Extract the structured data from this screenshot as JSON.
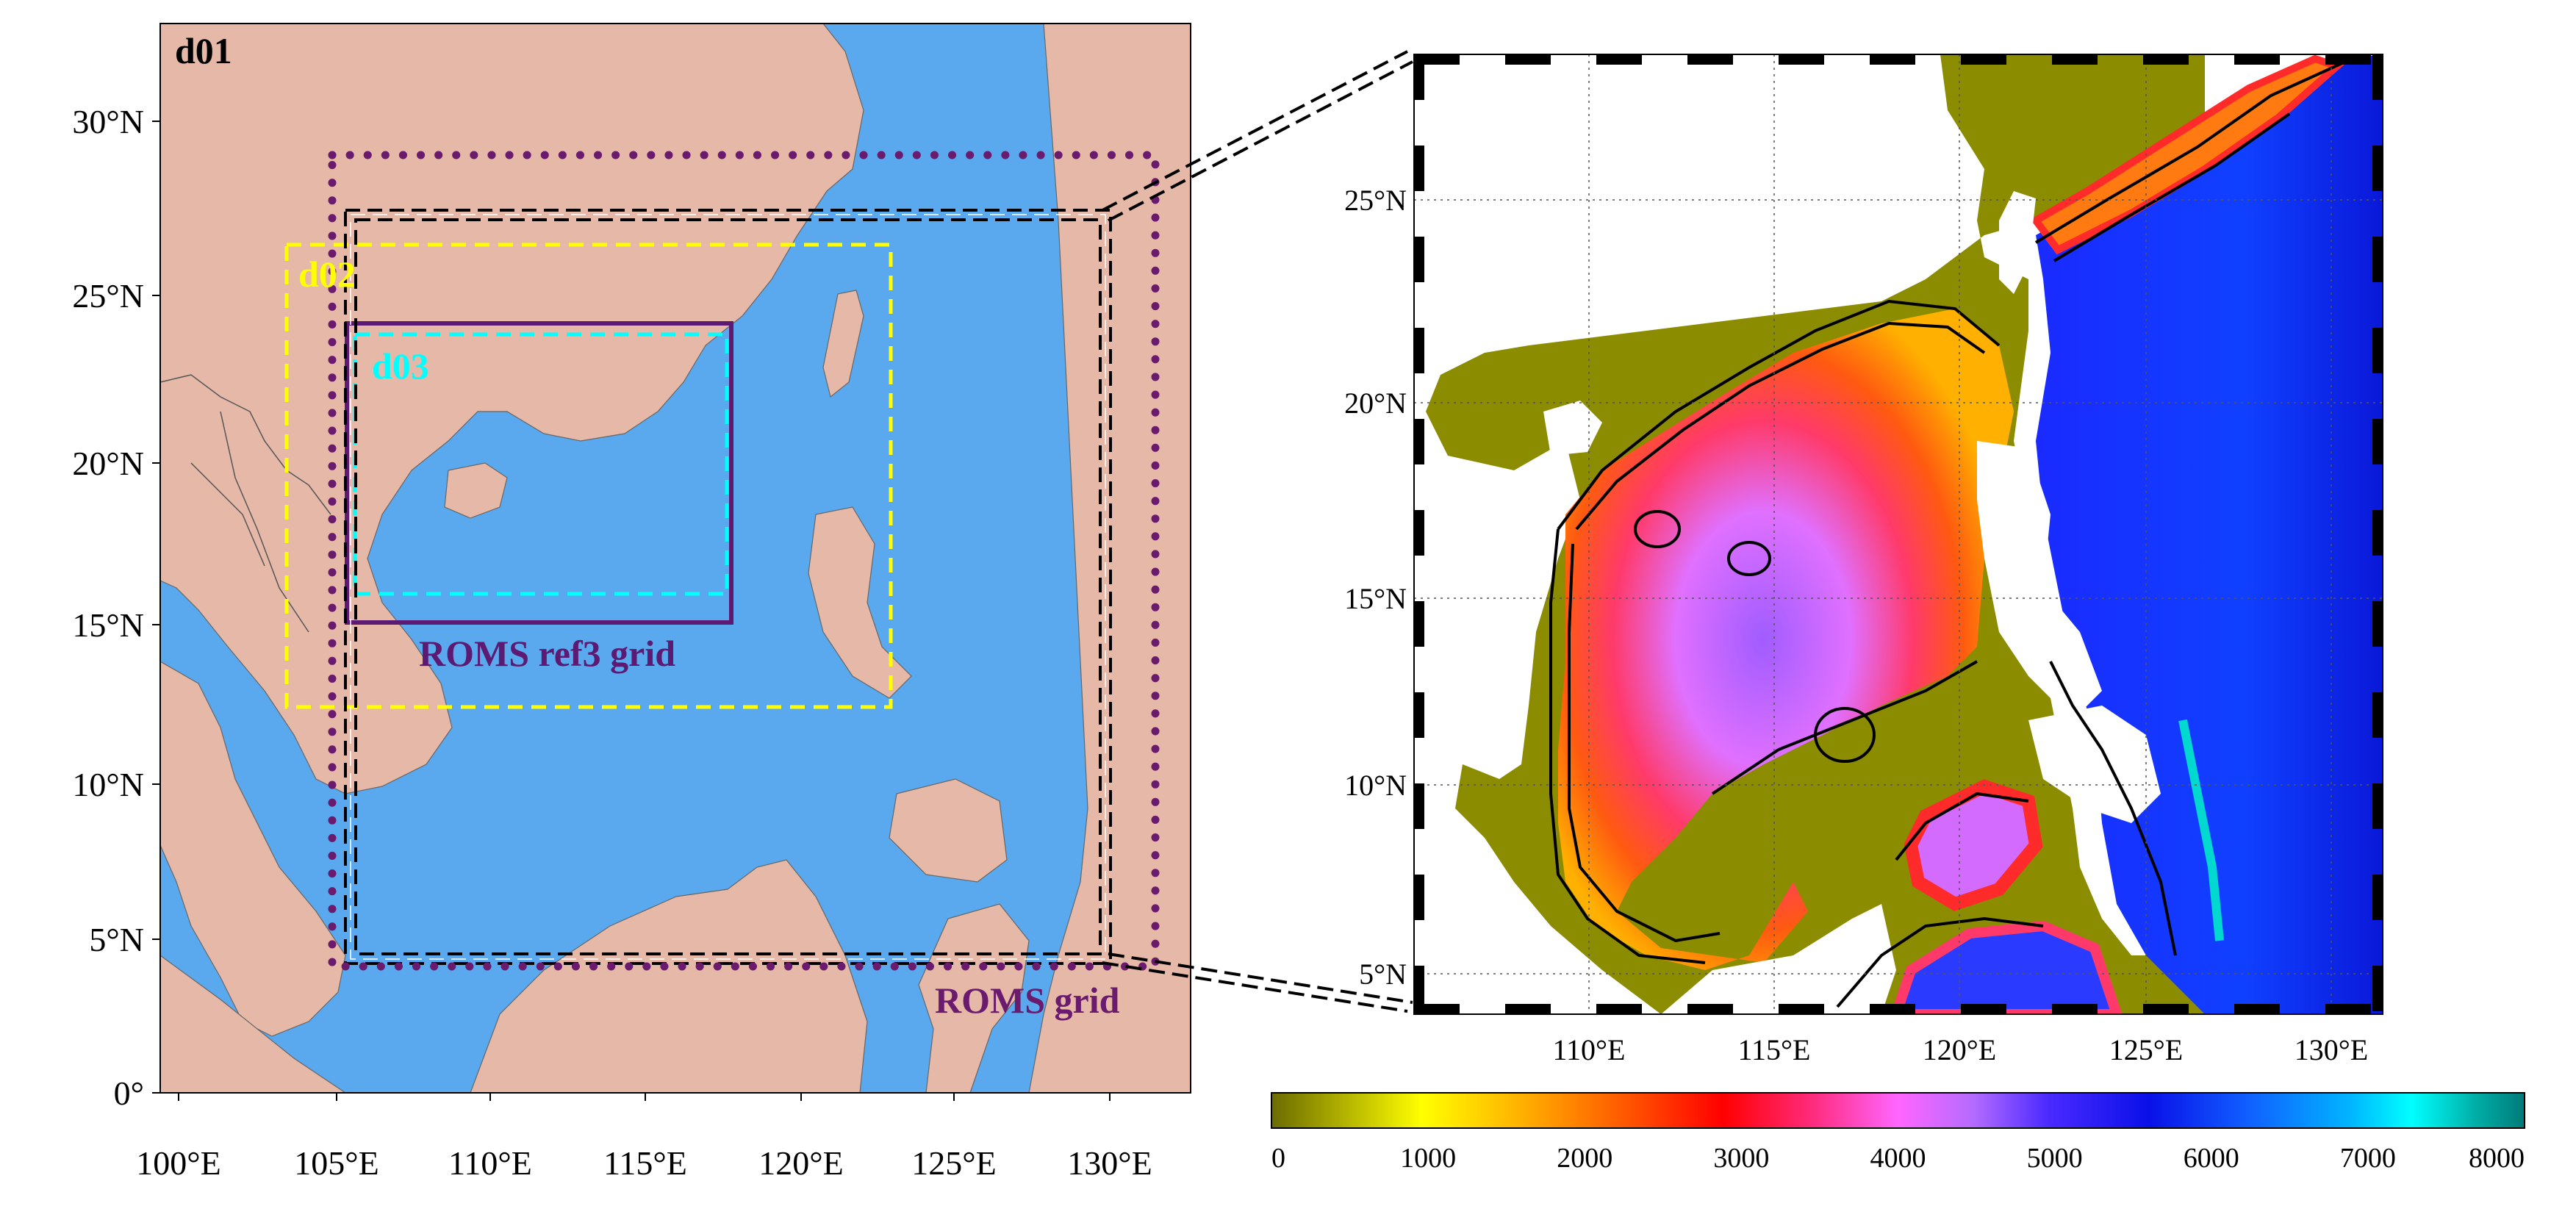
{
  "left_map": {
    "panel_label": "d01",
    "lat_ticks": [
      "0°",
      "5°N",
      "10°N",
      "15°N",
      "20°N",
      "25°N",
      "30°N"
    ],
    "lon_ticks": [
      "100°E",
      "105°E",
      "110°E",
      "115°E",
      "120°E",
      "125°E",
      "130°E"
    ],
    "domains": {
      "d02": "d02",
      "d03": "d03",
      "roms_ref3": "ROMS ref3 grid",
      "roms": "ROMS grid"
    },
    "colors": {
      "ocean": "#5aa9ee",
      "land": "#e5b8a8",
      "d02": "#ffff00",
      "d03": "#00ffff",
      "roms": "#6a1b6e",
      "roms_ref3": "#5c1a72",
      "inner": "#000000"
    }
  },
  "right_map": {
    "lat_ticks": [
      "5°N",
      "10°N",
      "15°N",
      "20°N",
      "25°N"
    ],
    "lon_ticks": [
      "110°E",
      "115°E",
      "120°E",
      "125°E",
      "130°E"
    ]
  },
  "colorbar": {
    "ticks": [
      "0",
      "1000",
      "2000",
      "3000",
      "4000",
      "5000",
      "6000",
      "7000",
      "8000"
    ],
    "range": [
      0,
      8000
    ]
  }
}
